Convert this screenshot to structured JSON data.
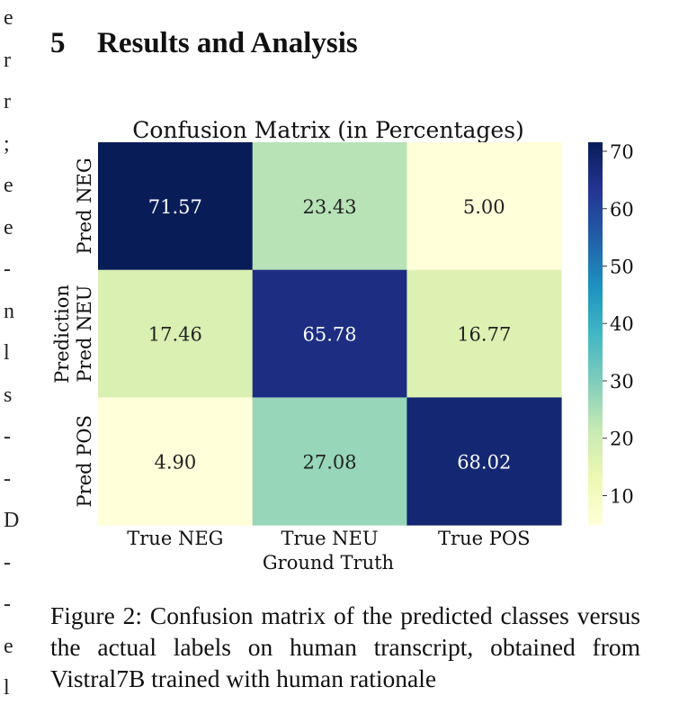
{
  "margin_fragments": [
    "e",
    "r",
    "r",
    ";",
    "e",
    "e",
    "-",
    "n",
    "l",
    "s",
    "-",
    "-",
    "D",
    "-",
    "-",
    "e",
    "l"
  ],
  "section": {
    "number": "5",
    "title": "Results and Analysis"
  },
  "chart_data": {
    "type": "heatmap",
    "title": "Confusion Matrix (in Percentages)",
    "xlabel": "Ground Truth",
    "ylabel": "Prediction",
    "columns": [
      "True NEG",
      "True NEU",
      "True POS"
    ],
    "rows": [
      "Pred NEG",
      "Pred NEU",
      "Pred POS"
    ],
    "values": [
      [
        71.57,
        23.43,
        5.0
      ],
      [
        17.46,
        65.78,
        16.77
      ],
      [
        4.9,
        27.08,
        68.02
      ]
    ],
    "value_format": "fixed2",
    "colormap": "YlGnBu",
    "colorbar": {
      "min": 4.9,
      "max": 71.57,
      "ticks": [
        10,
        20,
        30,
        40,
        50,
        60,
        70
      ]
    }
  },
  "caption": "Figure 2: Confusion matrix of the predicted classes versus the actual labels on human transcript, obtained from Vistral7B trained with human rationale"
}
